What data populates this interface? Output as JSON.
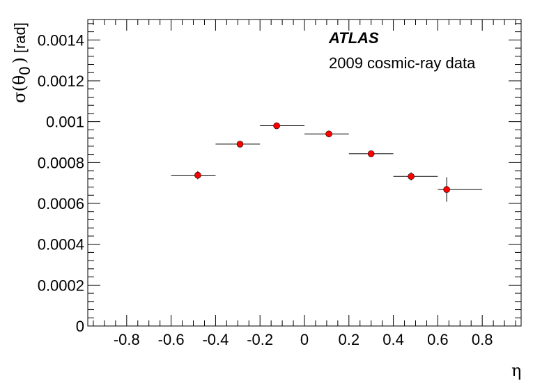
{
  "chart_data": {
    "type": "scatter",
    "title": "",
    "annotations": {
      "experiment": "ATLAS",
      "dataset": "2009 cosmic-ray data"
    },
    "xlabel": "η",
    "ylabel": {
      "sigma": "σ(",
      "theta": "θ",
      "subscript": "0",
      "close": ")",
      "unit": "[rad]"
    },
    "xlim": [
      -0.975,
      0.975
    ],
    "ylim": [
      0,
      0.0015
    ],
    "x_ticks": [
      -0.8,
      -0.6,
      -0.4,
      -0.2,
      0,
      0.2,
      0.4,
      0.6,
      0.8
    ],
    "x_tick_labels": [
      "-0.8",
      "-0.6",
      "-0.4",
      "-0.2",
      "0",
      "0.2",
      "0.4",
      "0.6",
      "0.8"
    ],
    "y_ticks": [
      0,
      0.0002,
      0.0004,
      0.0006,
      0.0008,
      0.001,
      0.0012,
      0.0014
    ],
    "y_tick_labels": [
      "0",
      "0.0002",
      "0.0004",
      "0.0006",
      "0.0008",
      "0.001",
      "0.0012",
      "0.0014"
    ],
    "grid": false,
    "marker_color": "#ff0000",
    "series": [
      {
        "name": "2009 cosmic-ray data",
        "points": [
          {
            "x": -0.48,
            "y": 0.000738,
            "xlo": -0.6,
            "xhi": -0.4,
            "yerr": 2e-05
          },
          {
            "x": -0.29,
            "y": 0.00089,
            "xlo": -0.4,
            "xhi": -0.2,
            "yerr": 8e-06
          },
          {
            "x": -0.125,
            "y": 0.00098,
            "xlo": -0.2,
            "xhi": 0.0,
            "yerr": 1e-05
          },
          {
            "x": 0.11,
            "y": 0.00094,
            "xlo": 0.0,
            "xhi": 0.2,
            "yerr": 1e-05
          },
          {
            "x": 0.3,
            "y": 0.000843,
            "xlo": 0.2,
            "xhi": 0.4,
            "yerr": 8e-06
          },
          {
            "x": 0.48,
            "y": 0.000732,
            "xlo": 0.4,
            "xhi": 0.6,
            "yerr": 2e-05
          },
          {
            "x": 0.64,
            "y": 0.000668,
            "xlo": 0.6,
            "xhi": 0.8,
            "yerr": 6e-05
          }
        ]
      }
    ]
  }
}
